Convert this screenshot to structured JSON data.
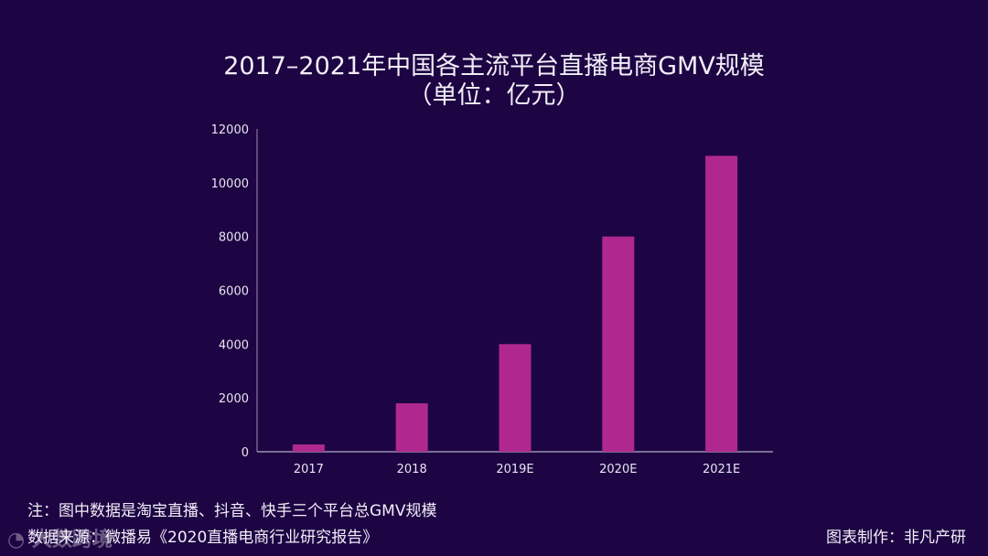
{
  "chart_data": {
    "type": "bar",
    "title": "2017–2021年中国各主流平台直播电商GMV规模",
    "subtitle": "（单位：亿元）",
    "categories": [
      "2017",
      "2018",
      "2019E",
      "2020E",
      "2021E"
    ],
    "values": [
      270,
      1800,
      4000,
      8000,
      11000
    ],
    "ylim": [
      0,
      12000
    ],
    "yticks": [
      "0",
      "2000",
      "4000",
      "6000",
      "8000",
      "10000",
      "12000"
    ],
    "grid": false,
    "bar_color": "#b0288f",
    "background": "#1d0443"
  },
  "notes": {
    "note": "注：图中数据是淘宝直播、抖音、快手三个平台总GMV规模",
    "source": "数据来源：微播易《2020直播电商行业研究报告》",
    "credit": "图表制作：非凡产研"
  },
  "watermark": "大数跨境"
}
